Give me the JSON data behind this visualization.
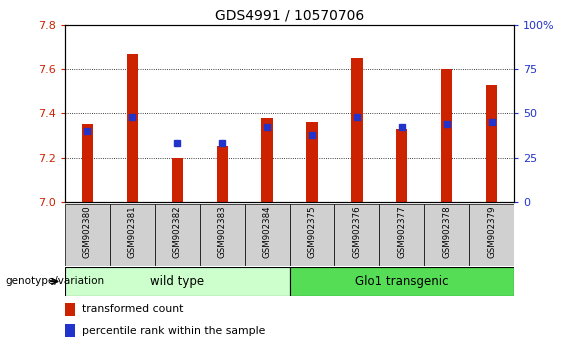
{
  "title": "GDS4991 / 10570706",
  "samples": [
    "GSM902380",
    "GSM902381",
    "GSM902382",
    "GSM902383",
    "GSM902384",
    "GSM902375",
    "GSM902376",
    "GSM902377",
    "GSM902378",
    "GSM902379"
  ],
  "transformed_count": [
    7.35,
    7.67,
    7.2,
    7.25,
    7.38,
    7.36,
    7.65,
    7.33,
    7.6,
    7.53
  ],
  "percentile_rank": [
    40,
    48,
    33,
    33,
    42,
    38,
    48,
    42,
    44,
    45
  ],
  "ylim_left": [
    7.0,
    7.8
  ],
  "ylim_right": [
    0,
    100
  ],
  "yticks_left": [
    7.0,
    7.2,
    7.4,
    7.6,
    7.8
  ],
  "yticks_right": [
    0,
    25,
    50,
    75,
    100
  ],
  "bar_color": "#cc2200",
  "marker_color": "#2233cc",
  "group1_bg": "#ccffcc",
  "group2_bg": "#55dd55",
  "group_labels": [
    "wild type",
    "Glo1 transgenic"
  ],
  "left_yaxis_color": "#cc2200",
  "right_yaxis_color": "#2233cc",
  "background_color": "#ffffff",
  "label_genotype": "genotype/variation",
  "legend_transformed": "transformed count",
  "legend_percentile": "percentile rank within the sample",
  "bar_width": 0.25,
  "marker_size": 4,
  "gridlines": [
    7.2,
    7.4,
    7.6
  ]
}
